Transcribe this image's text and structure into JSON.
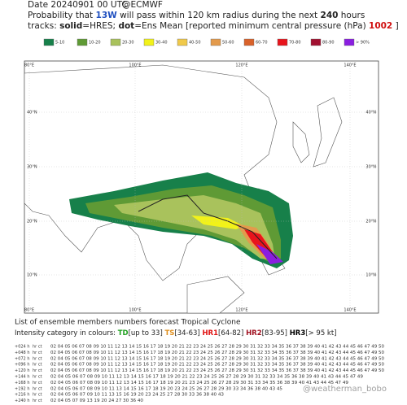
{
  "header": {
    "date": "Date 20240901 00 UTC",
    "source": "@ECMWF",
    "line2": [
      "Probability that",
      "13W",
      "will pass within 120 km radius during the next",
      "240",
      "hours"
    ],
    "line3": [
      "tracks:",
      "solid",
      "=HRES;",
      "dot",
      "=Ens Mean [reported minimum central pressure (hPa)",
      "1002",
      "]"
    ]
  },
  "legend": [
    {
      "label": "5-10",
      "color": "#17804a"
    },
    {
      "label": "10-20",
      "color": "#5f9a35"
    },
    {
      "label": "20-30",
      "color": "#a9c25c"
    },
    {
      "label": "30-40",
      "color": "#f2f21a"
    },
    {
      "label": "40-50",
      "color": "#f0c94a"
    },
    {
      "label": "50-60",
      "color": "#e39a4c"
    },
    {
      "label": "60-70",
      "color": "#d9622a"
    },
    {
      "label": "70-80",
      "color": "#e8141c"
    },
    {
      "label": "80-90",
      "color": "#a11030"
    },
    {
      "label": "> 90%",
      "color": "#8a1ee0"
    }
  ],
  "map": {
    "lon_labels": [
      "80°E",
      "100°E",
      "120°E",
      "140°E"
    ],
    "lat_labels": [
      "40°N",
      "30°N",
      "20°N",
      "10°N"
    ]
  },
  "footer": {
    "line1": "List of ensemble members numbers forecast Tropical Cyclone",
    "line2": [
      "Intensity category in colours:",
      "TD",
      "[up to 33]",
      "TS",
      "[34-63]",
      "HR1",
      "[64-82]",
      "HR2",
      "[83-95]",
      "HR3",
      "[> 95 kt]"
    ]
  },
  "table": {
    "rows": [
      {
        "label": "+024 h",
        "tag": "hr ct",
        "values": "02 04 05 06 07 08 09 10 11 12 13 14 15 16 17 18 19 20 21 22 23 24 25 26 27 28 29 30 31 32 33 34 35 36 37 38 39 40 41 42 43 44 45 46 47 49 50"
      },
      {
        "label": "+048 h",
        "tag": "hr ct",
        "values": "02 04 05 06 07 08 09 10 11 12 13 14 15 16 17 18 19 20 21 22 23 24 25 26 27 28 29 30 31 32 33 34 35 36 37 38 39 40 41 42 43 44 45 46 47 49 50"
      },
      {
        "label": "+072 h",
        "tag": "hr ct",
        "values": "02 04 05 06 07 08 09 10 11 12 13 14 15 16 17 18 19 20 21 22 23 24 25 26 27 28 29 30 31 32 33 34 35 36 37 38 39 40 41 42 43 44 45 46 47 49 50"
      },
      {
        "label": "+096 h",
        "tag": "hr ct",
        "values": "02 04 05 06 07 08 09 10 11 12 13 14 15 16 17 18 19 20 21 22 23 24 25 26 27 28 29 30 31 32 33 34 35 36 37 38 39 40 41 42 43 44 45 46 47 49 50"
      },
      {
        "label": "+120 h",
        "tag": "hr ct",
        "values": "02 04 05 06 07 08 09 10 11 12 13 14 15 16 17 18 19 20 21 22 23 24 25 26 27 28 29 30 31 32 33 34 35 36 37 38 39 40 41 42 43 44 45 46 47 49 50"
      },
      {
        "label": "+144 h",
        "tag": "hr ct",
        "values": "02 04 05 06 07 08 09 10 11 12 13 14 15 16 17 18 19 20 21 22 23 24 25 26 27 28 29 30 31 32 33 34 35 36 38 39 40 41 43 44 45 47 49"
      },
      {
        "label": "+168 h",
        "tag": "hr ct",
        "values": "02 04 05 06 07 08 09 10 11 12 13 14 15 16 17 18 19 20 21 23 24 25 26 27 28 29 30 31 33 34 35 36 38 39 40 41 43 44 45 47 49"
      },
      {
        "label": "+192 h",
        "tag": "hr ct",
        "values": "02 04 05 06 07 08 09 10 11 13 14 15 16 17 18 19 20 23 24 25 26 27 28 29 30 33 34 36 38 40 43 45"
      },
      {
        "label": "+216 h",
        "tag": "hr ct",
        "values": "02 04 05 06 07 09 10 11 13 15 16 19 20 23 24 25 27 28 30 33 36 38 40 43"
      },
      {
        "label": "+240 h",
        "tag": "hr ct",
        "values": "02 04 05 07 09 13 19 20 24 27 30 36 40"
      }
    ]
  },
  "watermark": "@weatherman_bobo"
}
